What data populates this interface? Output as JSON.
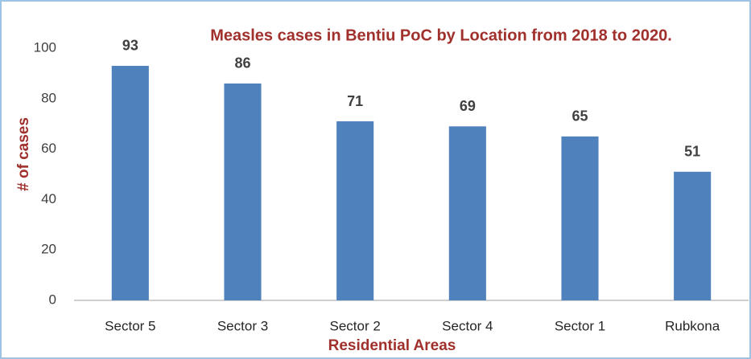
{
  "chart_data": {
    "type": "bar",
    "title": "Measles cases in Bentiu PoC by Location from 2018 to 2020.",
    "x_label": "Residential Areas",
    "y_label": "# of cases",
    "categories": [
      "Sector 5",
      "Sector 3",
      "Sector 2",
      "Sector 4",
      "Sector 1",
      "Rubkona"
    ],
    "values": [
      93,
      86,
      71,
      69,
      65,
      51
    ],
    "color": "#4f81bd",
    "ylim": [
      0,
      100
    ],
    "yticks": [
      0,
      20,
      40,
      60,
      80,
      100
    ],
    "grid": false
  }
}
